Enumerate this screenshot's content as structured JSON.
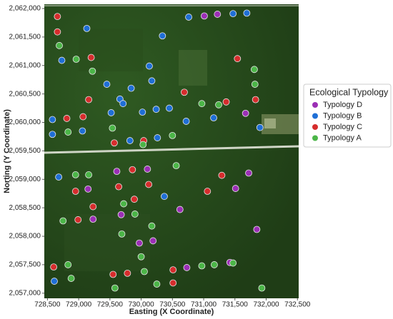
{
  "chart_data": {
    "type": "scatter",
    "x_label": "Easting (X Coordinate)",
    "y_label": "Norting (Y Coordinate)",
    "legend_title": "Ecological Typology",
    "legend_position": "right",
    "xlim": [
      728450,
      732520
    ],
    "ylim": [
      2056910,
      2062075
    ],
    "xticks": [
      {
        "value": 728500,
        "label": "728,500"
      },
      {
        "value": 729000,
        "label": "729,000"
      },
      {
        "value": 729500,
        "label": "729,500"
      },
      {
        "value": 730000,
        "label": "730,000"
      },
      {
        "value": 730500,
        "label": "730,500"
      },
      {
        "value": 731000,
        "label": "731,000"
      },
      {
        "value": 731500,
        "label": "731,500"
      },
      {
        "value": 732000,
        "label": "732,000"
      },
      {
        "value": 732500,
        "label": "732,500"
      }
    ],
    "yticks": [
      {
        "value": 2057000,
        "label": "2,057,000"
      },
      {
        "value": 2057500,
        "label": "2,057,500"
      },
      {
        "value": 2058000,
        "label": "2,058,000"
      },
      {
        "value": 2058500,
        "label": "2,058,500"
      },
      {
        "value": 2059000,
        "label": "2,059,000"
      },
      {
        "value": 2059500,
        "label": "2,059,500"
      },
      {
        "value": 2060000,
        "label": "2,060,000"
      },
      {
        "value": 2060500,
        "label": "2,060,500"
      },
      {
        "value": 2061000,
        "label": "2,061,000"
      },
      {
        "value": 2061500,
        "label": "2,061,500"
      },
      {
        "value": 2062000,
        "label": "2,062,000"
      }
    ],
    "series": [
      {
        "name": "Typology D",
        "color": "#9b2fb5",
        "x": [
          731010,
          731220,
          731670,
          729610,
          730100,
          731720,
          729150,
          731510,
          729230,
          729680,
          730620,
          731850,
          729970,
          730190,
          730730,
          731420
        ],
        "y": [
          2061870,
          2061900,
          2060160,
          2059140,
          2059180,
          2059110,
          2058830,
          2058840,
          2058300,
          2058380,
          2058470,
          2058120,
          2057880,
          2057920,
          2057450,
          2057540
        ]
      },
      {
        "name": "Typology B",
        "color": "#1f6fd6",
        "x": [
          730760,
          731690,
          731470,
          729130,
          730340,
          728730,
          730130,
          729450,
          730170,
          729840,
          729660,
          729710,
          730240,
          730450,
          729520,
          730020,
          730720,
          731160,
          728580,
          728580,
          729060,
          731900,
          729820,
          730260,
          728680,
          730370,
          728610
        ],
        "y": [
          2061850,
          2061920,
          2061910,
          2061650,
          2061520,
          2061090,
          2060990,
          2060670,
          2060730,
          2060600,
          2060410,
          2060330,
          2060230,
          2060250,
          2060170,
          2060180,
          2060020,
          2060080,
          2060050,
          2059790,
          2059850,
          2059910,
          2059680,
          2059730,
          2059040,
          2058700,
          2057210
        ]
      },
      {
        "name": "Typology C",
        "color": "#d62d2d",
        "x": [
          728660,
          728660,
          729200,
          731540,
          730690,
          729160,
          731830,
          731360,
          728810,
          729070,
          729570,
          730040,
          729860,
          729640,
          728950,
          730120,
          729890,
          729230,
          728990,
          731060,
          731290,
          728600,
          729550,
          729780,
          730510,
          730510
        ],
        "y": [
          2061860,
          2061590,
          2061140,
          2061120,
          2060530,
          2060400,
          2060400,
          2060360,
          2060070,
          2060100,
          2059640,
          2059680,
          2059170,
          2058870,
          2058790,
          2058910,
          2058650,
          2058520,
          2058290,
          2058790,
          2059070,
          2057460,
          2057330,
          2057350,
          2057410,
          2057180
        ]
      },
      {
        "name": "Typology A",
        "color": "#4cb648",
        "x": [
          728690,
          728960,
          729220,
          731810,
          731240,
          730970,
          731820,
          729540,
          728830,
          730500,
          730030,
          730560,
          728950,
          729160,
          729720,
          729900,
          728750,
          730170,
          729690,
          730000,
          730050,
          728830,
          728880,
          730250,
          731170,
          731470,
          729580,
          731930,
          730970
        ],
        "y": [
          2061350,
          2061110,
          2060900,
          2060930,
          2060310,
          2060330,
          2060670,
          2059900,
          2059830,
          2059770,
          2059610,
          2059240,
          2059080,
          2059080,
          2058570,
          2058390,
          2058270,
          2058180,
          2058040,
          2057640,
          2057380,
          2057500,
          2057260,
          2057160,
          2057500,
          2057530,
          2057090,
          2057090,
          2057480
        ]
      }
    ]
  }
}
